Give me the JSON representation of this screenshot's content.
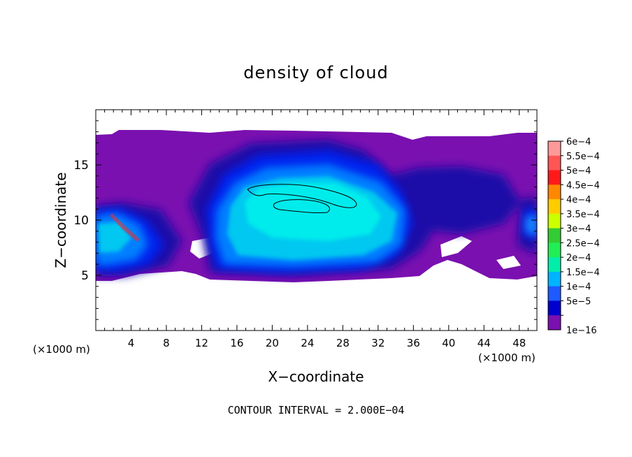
{
  "chart_data": {
    "type": "heatmap",
    "title": "density of cloud",
    "xlabel": "X−coordinate",
    "ylabel": "Z−coordinate",
    "x_unit": "(×1000 m)",
    "y_unit": "(×1000 m)",
    "xlim": [
      0,
      50
    ],
    "ylim": [
      0,
      20
    ],
    "x_ticks": [
      4,
      8,
      12,
      16,
      20,
      24,
      28,
      32,
      36,
      40,
      44,
      48
    ],
    "y_ticks": [
      5,
      10,
      15
    ],
    "colorbar": {
      "labels": [
        "6e−4",
        "5.5e−4",
        "5e−4",
        "4.5e−4",
        "4e−4",
        "3.5e−4",
        "3e−4",
        "2.5e−4",
        "2e−4",
        "1.5e−4",
        "1e−4",
        "5e−5",
        "1e−16"
      ],
      "colors": [
        "#ff9999",
        "#ff5555",
        "#ff1a1a",
        "#ff8800",
        "#ffcc00",
        "#ccff00",
        "#33cc33",
        "#22ee55",
        "#00eeaa",
        "#00b4ff",
        "#1e5aff",
        "#0000cc",
        "#7a10b0"
      ]
    },
    "contour_interval_label": "CONTOUR INTERVAL =  2.000E−04",
    "cloud_layer_z": [
      4.5,
      17.8
    ],
    "contour_line_level": 0.0002
  }
}
